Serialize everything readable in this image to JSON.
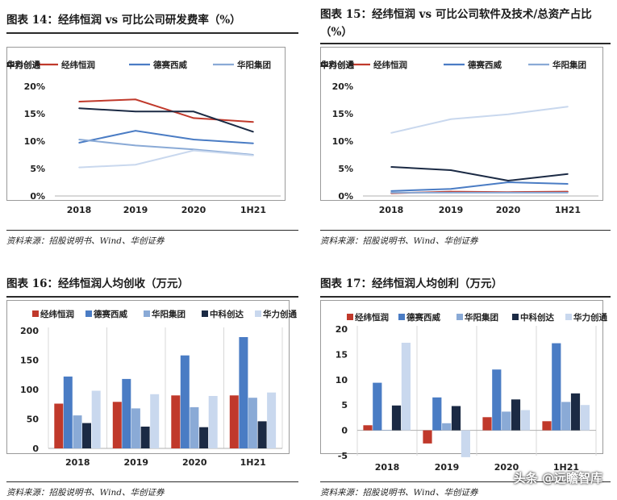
{
  "colors": {
    "jingwei": "#c0392b",
    "desai": "#4a7cc4",
    "huayang": "#8aaad6",
    "zhongke": "#1b2a44",
    "huali": "#c9d8ee",
    "axis": "#b0b0b0",
    "frame": "#9a9a9a"
  },
  "watermark": "头条 @远瞻智库",
  "panels": [
    {
      "title": "图表 14：经纬恒润 vs 可比公司研发费率（%）",
      "source": "资料来源：招股说明书、Wind、华创证券"
    },
    {
      "title": "图表 15：经纬恒润 vs 可比公司软件及技术/总资产占比（%）",
      "source": "资料来源：招股说明书、Wind、华创证券"
    },
    {
      "title": "图表 16：经纬恒润人均创收（万元）",
      "source": "资料来源：招股说明书、Wind、华创证券"
    },
    {
      "title": "图表 17：经纬恒润人均创利（万元）",
      "source": "资料来源：招股说明书、Wind、华创证券"
    }
  ],
  "chart_data": [
    {
      "type": "line",
      "title": "图表 14：经纬恒润 vs 可比公司研发费率（%）",
      "categories": [
        "2018",
        "2019",
        "2020",
        "1H21"
      ],
      "yticks": [
        "0%",
        "5%",
        "10%",
        "15%",
        "20%"
      ],
      "ylim": [
        0,
        20
      ],
      "series": [
        {
          "name": "经纬恒润",
          "values": [
            17.2,
            17.6,
            14.2,
            13.5
          ]
        },
        {
          "name": "德赛西威",
          "values": [
            9.7,
            11.9,
            10.3,
            9.6
          ]
        },
        {
          "name": "华阳集团",
          "values": [
            10.3,
            9.2,
            8.5,
            7.5
          ]
        },
        {
          "name": "中科创达",
          "values": [
            16.0,
            15.4,
            15.4,
            11.7
          ]
        },
        {
          "name": "华力创通",
          "values": [
            5.2,
            5.7,
            8.3,
            7.4
          ]
        }
      ],
      "grid": false,
      "legend": "top"
    },
    {
      "type": "line",
      "title": "图表 15：经纬恒润 vs 可比公司软件及技术/总资产占比（%）",
      "categories": [
        "2018",
        "2019",
        "2020",
        "1H21"
      ],
      "yticks": [
        "0%",
        "5%",
        "10%",
        "15%",
        "20%"
      ],
      "ylim": [
        0,
        20
      ],
      "series": [
        {
          "name": "经纬恒润",
          "values": [
            0.5,
            0.8,
            0.7,
            0.8
          ]
        },
        {
          "name": "德赛西威",
          "values": [
            0.9,
            1.3,
            2.5,
            2.2
          ]
        },
        {
          "name": "华阳集团",
          "values": [
            0.6,
            0.6,
            0.6,
            0.6
          ]
        },
        {
          "name": "中科创达",
          "values": [
            5.3,
            4.7,
            2.8,
            4.0
          ]
        },
        {
          "name": "华力创通",
          "values": [
            11.5,
            14.0,
            14.9,
            16.3
          ]
        }
      ],
      "grid": false,
      "legend": "top"
    },
    {
      "type": "bar",
      "title": "图表 16：经纬恒润人均创收（万元）",
      "categories": [
        "2018",
        "2019",
        "2020",
        "1H21"
      ],
      "yticks": [
        "0",
        "50",
        "100",
        "150",
        "200"
      ],
      "ylim": [
        0,
        200
      ],
      "series": [
        {
          "name": "经纬恒润",
          "values": [
            76,
            79,
            90,
            90
          ]
        },
        {
          "name": "德赛西威",
          "values": [
            122,
            118,
            158,
            189
          ]
        },
        {
          "name": "华阳集团",
          "values": [
            56,
            68,
            70,
            86
          ]
        },
        {
          "name": "中科创达",
          "values": [
            43,
            37,
            36,
            46
          ]
        },
        {
          "name": "华力创通",
          "values": [
            98,
            92,
            89,
            95
          ]
        }
      ],
      "grid": false,
      "legend": "top"
    },
    {
      "type": "bar",
      "title": "图表 17：经纬恒润人均创利（万元）",
      "categories": [
        "2018",
        "2019",
        "2020",
        "1H21"
      ],
      "yticks": [
        "-5",
        "0",
        "5",
        "10",
        "15",
        "20"
      ],
      "ylim": [
        -5,
        20
      ],
      "series": [
        {
          "name": "经纬恒润",
          "values": [
            1.0,
            -2.6,
            2.6,
            1.8
          ]
        },
        {
          "name": "德赛西威",
          "values": [
            9.4,
            6.5,
            12.0,
            17.2
          ]
        },
        {
          "name": "华阳集团",
          "values": [
            0.1,
            1.4,
            3.7,
            5.6
          ]
        },
        {
          "name": "中科创达",
          "values": [
            4.9,
            4.8,
            6.1,
            7.3
          ]
        },
        {
          "name": "华力创通",
          "values": [
            17.3,
            -5.3,
            4.0,
            5.0
          ]
        }
      ],
      "grid": false,
      "legend": "top"
    }
  ]
}
